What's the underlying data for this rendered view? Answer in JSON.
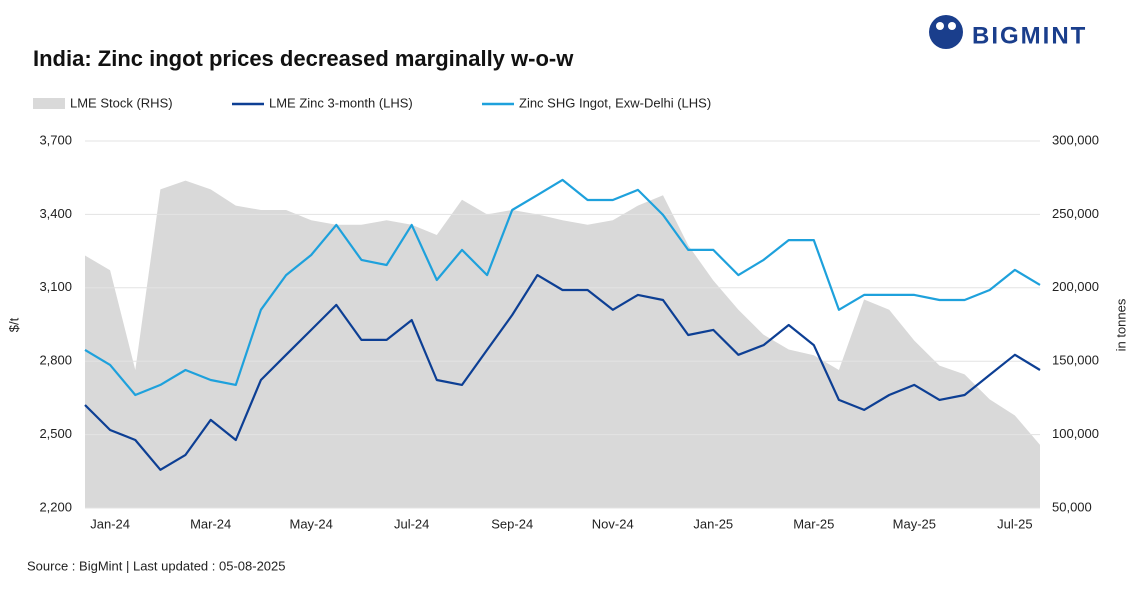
{
  "chart_data": {
    "type": "line",
    "title": "India: Zinc ingot prices decreased marginally w-o-w",
    "brand": "BIGMINT",
    "source": "Source : BigMint | Last updated : 05-08-2025",
    "ylabel": "$/t",
    "y2label": "in tonnes",
    "categories": [
      null,
      "Jan-24",
      null,
      null,
      null,
      "Mar-24",
      null,
      null,
      null,
      "May-24",
      null,
      null,
      null,
      "Jul-24",
      null,
      null,
      null,
      "Sep-24",
      null,
      null,
      null,
      "Nov-24",
      null,
      null,
      null,
      "Jan-25",
      null,
      null,
      null,
      "Mar-25",
      null,
      null,
      null,
      "May-25",
      null,
      null,
      null,
      "Jul-25",
      null
    ],
    "ylim": [
      2200,
      3700
    ],
    "yticks": [
      {
        "value": 2200,
        "label": "2,200"
      },
      {
        "value": 2500,
        "label": "2,500"
      },
      {
        "value": 2800,
        "label": "2,800"
      },
      {
        "value": 3100,
        "label": "3,100"
      },
      {
        "value": 3400,
        "label": "3,400"
      },
      {
        "value": 3700,
        "label": "3,700"
      }
    ],
    "y2lim": [
      50000,
      300000
    ],
    "y2ticks": [
      {
        "value": 50000,
        "label": "50,000"
      },
      {
        "value": 100000,
        "label": "100,000"
      },
      {
        "value": 150000,
        "label": "150,000"
      },
      {
        "value": 200000,
        "label": "200,000"
      },
      {
        "value": 250000,
        "label": "250,000"
      },
      {
        "value": 300000,
        "label": "300,000"
      }
    ],
    "grid": true,
    "series": [
      {
        "name": "LME Stock (RHS)",
        "color": "#d9d9d9",
        "kind": "area",
        "axis": "y2",
        "values": [
          222000,
          212000,
          144000,
          267000,
          273000,
          267000,
          256000,
          253000,
          253000,
          246000,
          243000,
          243000,
          246000,
          243000,
          236000,
          260000,
          250000,
          253000,
          250000,
          246000,
          243000,
          246000,
          256000,
          263000,
          229000,
          205000,
          185000,
          168000,
          158000,
          154000,
          144000,
          192000,
          185000,
          164000,
          147000,
          141000,
          124000,
          113000,
          93000
        ]
      },
      {
        "name": "LME  Zinc  3-month (LHS)",
        "color": "#0d3f94",
        "kind": "line",
        "values": [
          2621,
          2519,
          2478,
          2356,
          2417,
          2560,
          2478,
          2723,
          2826,
          2928,
          3030,
          2887,
          2887,
          2968,
          2723,
          2703,
          2846,
          2989,
          3152,
          3091,
          3091,
          3010,
          3071,
          3050,
          2907,
          2928,
          2826,
          2866,
          2948,
          2866,
          2642,
          2601,
          2662,
          2703,
          2642,
          2662,
          2744,
          2826,
          2764
        ]
      },
      {
        "name": "Zinc SHG Ingot, Exw-Delhi (LHS)",
        "color": "#1ea1dc",
        "kind": "line",
        "values": [
          2846,
          2785,
          2662,
          2703,
          2764,
          2723,
          2703,
          3010,
          3152,
          3234,
          3357,
          3214,
          3193,
          3357,
          3132,
          3255,
          3152,
          3418,
          3479,
          3541,
          3459,
          3459,
          3500,
          3398,
          3255,
          3255,
          3152,
          3214,
          3295,
          3295,
          3010,
          3071,
          3071,
          3071,
          3050,
          3050,
          3091,
          3173,
          3112
        ]
      }
    ]
  }
}
